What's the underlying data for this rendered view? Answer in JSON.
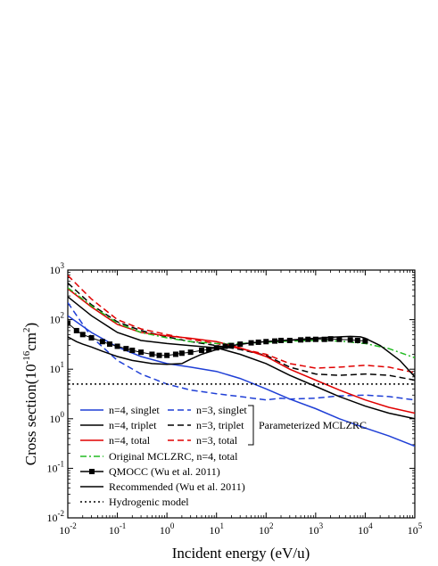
{
  "chart_data": {
    "type": "line",
    "xlabel": "Incident energy (eV/u)",
    "ylabel": "Cross section(10",
    "ylabel_sup": "-16",
    "ylabel_unit": "cm",
    "ylabel_unit_sup": "2",
    "ylabel_close": ")",
    "x_scale": "log",
    "y_scale": "log",
    "xlim": [
      0.01,
      100000
    ],
    "ylim": [
      0.01,
      1000
    ],
    "grid": false,
    "legend_position": "bottom-left",
    "x_ticks": [
      {
        "value": 0.01,
        "base": "10",
        "exp": "-2"
      },
      {
        "value": 0.1,
        "base": "10",
        "exp": "-1"
      },
      {
        "value": 1,
        "base": "10",
        "exp": "0"
      },
      {
        "value": 10,
        "base": "10",
        "exp": "1"
      },
      {
        "value": 100,
        "base": "10",
        "exp": "2"
      },
      {
        "value": 1000,
        "base": "10",
        "exp": "3"
      },
      {
        "value": 10000,
        "base": "10",
        "exp": "4"
      },
      {
        "value": 100000,
        "base": "10",
        "exp": "5"
      }
    ],
    "y_ticks": [
      {
        "value": 0.01,
        "base": "10",
        "exp": "-2"
      },
      {
        "value": 0.1,
        "base": "10",
        "exp": "-1"
      },
      {
        "value": 1,
        "base": "10",
        "exp": "0"
      },
      {
        "value": 10,
        "base": "10",
        "exp": "1"
      },
      {
        "value": 100,
        "base": "10",
        "exp": "2"
      },
      {
        "value": 1000,
        "base": "10",
        "exp": "3"
      }
    ],
    "bracket_label": "Parameterized MCLZRC",
    "series": [
      {
        "name": "n=4, singlet",
        "color": "#1f3fd6",
        "dash": "solid",
        "marker": "none",
        "x": [
          0.01,
          0.03,
          0.1,
          0.3,
          1,
          3,
          10,
          30,
          100,
          300,
          1000,
          3000,
          10000,
          30000,
          100000
        ],
        "y": [
          120,
          55,
          28,
          18,
          13,
          11,
          9,
          6.5,
          4,
          2.5,
          1.6,
          1.0,
          0.65,
          0.45,
          0.28
        ]
      },
      {
        "name": "n=3, singlet",
        "color": "#1f3fd6",
        "dash": "dashed",
        "marker": "none",
        "x": [
          0.01,
          0.03,
          0.1,
          0.3,
          1,
          3,
          10,
          30,
          100,
          200,
          300,
          1000,
          3000,
          10000,
          30000,
          100000
        ],
        "y": [
          220,
          45,
          15,
          8,
          5,
          3.8,
          3.2,
          2.8,
          2.4,
          2.6,
          2.5,
          2.6,
          2.9,
          3.0,
          2.8,
          2.4
        ]
      },
      {
        "name": "n=4, triplet",
        "color": "#000000",
        "dash": "solid",
        "marker": "none",
        "x": [
          0.01,
          0.03,
          0.1,
          0.3,
          1,
          3,
          10,
          30,
          100,
          300,
          1000,
          3000,
          10000,
          30000,
          100000
        ],
        "y": [
          290,
          120,
          55,
          38,
          33,
          30,
          27,
          20,
          13,
          7.5,
          4.5,
          2.8,
          1.8,
          1.3,
          1.0
        ]
      },
      {
        "name": "n=3, triplet",
        "color": "#000000",
        "dash": "dashed",
        "marker": "none",
        "x": [
          0.01,
          0.03,
          0.1,
          0.3,
          1,
          3,
          10,
          30,
          100,
          300,
          1000,
          3000,
          10000,
          30000,
          100000
        ],
        "y": [
          550,
          200,
          90,
          60,
          45,
          36,
          30,
          25,
          19,
          11,
          8,
          7.5,
          8,
          7.5,
          6
        ]
      },
      {
        "name": "n=4, total",
        "color": "#e00000",
        "dash": "solid",
        "marker": "none",
        "x": [
          0.01,
          0.03,
          0.1,
          0.3,
          1,
          3,
          10,
          30,
          100,
          300,
          1000,
          3000,
          10000,
          30000,
          100000
        ],
        "y": [
          420,
          180,
          80,
          55,
          47,
          42,
          36,
          27,
          18,
          10,
          6,
          3.8,
          2.4,
          1.7,
          1.3
        ]
      },
      {
        "name": "n=3, total",
        "color": "#e00000",
        "dash": "dashed",
        "marker": "none",
        "x": [
          0.01,
          0.03,
          0.1,
          0.3,
          1,
          3,
          10,
          30,
          100,
          300,
          1000,
          3000,
          10000,
          30000,
          100000
        ],
        "y": [
          780,
          260,
          100,
          65,
          50,
          40,
          33,
          26,
          20,
          13,
          10.5,
          11,
          12,
          11,
          8.5
        ]
      },
      {
        "name": "Original MCLZRC, n=4, total",
        "color": "#22bb22",
        "dash": "dashdot",
        "marker": "none",
        "x": [
          0.01,
          0.03,
          0.1,
          0.3,
          1,
          3,
          10,
          30,
          100,
          300,
          1000,
          3000,
          10000,
          30000,
          100000
        ],
        "y": [
          440,
          190,
          85,
          55,
          43,
          36,
          33,
          33,
          35,
          37,
          38,
          37,
          33,
          26,
          17
        ]
      },
      {
        "name": "QMOCC (Wu et al. 2011)",
        "color": "#000000",
        "dash": "solid",
        "marker": "square",
        "x": [
          0.01,
          0.015,
          0.02,
          0.03,
          0.05,
          0.07,
          0.1,
          0.15,
          0.2,
          0.3,
          0.5,
          0.7,
          1,
          1.5,
          2,
          3,
          5,
          7,
          10,
          15,
          20,
          30,
          50,
          70,
          100,
          150,
          200,
          300,
          500,
          700,
          1000,
          1500,
          2000,
          3000,
          5000,
          7000,
          10000
        ],
        "y": [
          85,
          60,
          50,
          43,
          36,
          32,
          29,
          26,
          24,
          22,
          20,
          19,
          19,
          20,
          21,
          22,
          24,
          25,
          27,
          29,
          30,
          32,
          34,
          35,
          36,
          37,
          38,
          38,
          39,
          40,
          40,
          40,
          41,
          40,
          39,
          38,
          37
        ]
      },
      {
        "name": "Recommended (Wu et al. 2011)",
        "color": "#000000",
        "dash": "solid",
        "marker": "none",
        "x": [
          0.01,
          0.015,
          0.02,
          0.03,
          0.05,
          0.1,
          0.2,
          0.5,
          1,
          2,
          3,
          5,
          10,
          20,
          50,
          100,
          200,
          500,
          1000,
          2000,
          5000,
          8000,
          10000,
          20000,
          50000,
          100000
        ],
        "y": [
          45,
          36,
          32,
          28,
          23,
          18,
          15,
          13,
          12.5,
          13,
          16,
          20,
          25,
          30,
          34,
          36,
          38,
          40,
          42,
          44,
          46,
          45,
          42,
          30,
          15,
          7
        ]
      },
      {
        "name": "Hydrogenic model",
        "color": "#000000",
        "dash": "dotted",
        "marker": "none",
        "x": [
          0.01,
          100000
        ],
        "y": [
          5,
          5
        ]
      }
    ]
  }
}
